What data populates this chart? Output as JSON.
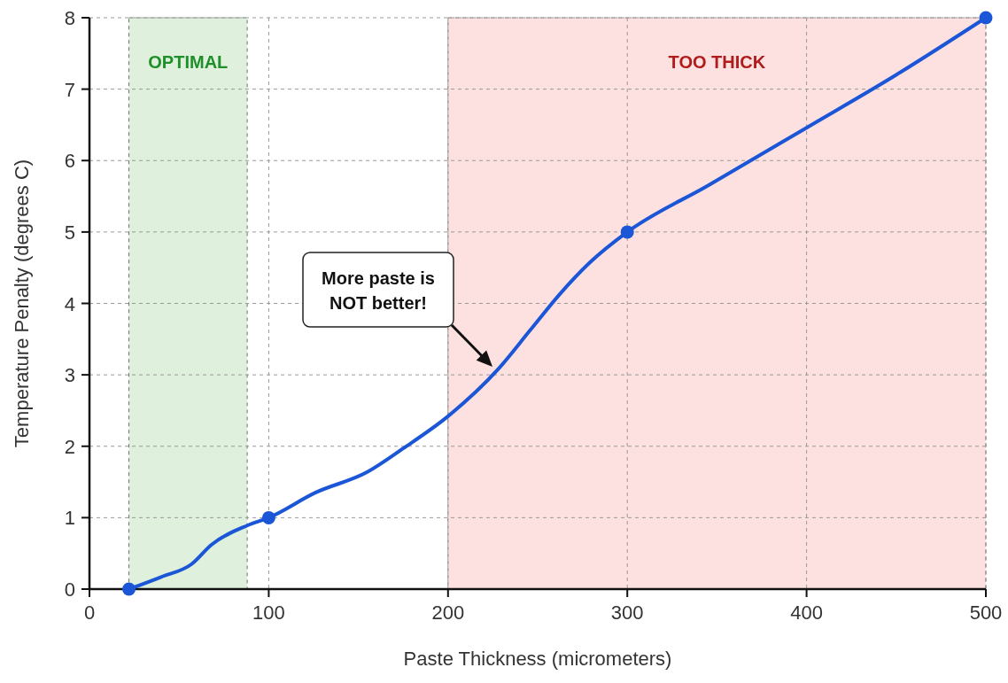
{
  "chart_data": {
    "type": "line",
    "xlabel": "Paste Thickness (micrometers)",
    "ylabel": "Temperature Penalty (degrees C)",
    "xlim": [
      0,
      500
    ],
    "xticks": [
      0,
      100,
      200,
      300,
      400,
      500
    ],
    "ylim": [
      0,
      8
    ],
    "yticks": [
      0,
      1,
      2,
      3,
      4,
      5,
      6,
      7,
      8
    ],
    "grid": true,
    "line_style": "solid",
    "series": [
      {
        "color": "#1a56d6",
        "marker": "none",
        "x": [
          22,
          40,
          57,
          68,
          88,
          100,
          126,
          155,
          175,
          200,
          228,
          246,
          262,
          279,
          300,
          345,
          400,
          450,
          500
        ],
        "values": [
          0,
          0.17,
          0.35,
          0.62,
          0.89,
          1,
          1.35,
          1.64,
          1.97,
          2.42,
          3.08,
          3.63,
          4.12,
          4.57,
          5,
          5.65,
          6.46,
          7.2,
          8
        ]
      },
      {
        "type": "scatter",
        "color": "#1a56d6",
        "marker": "circle",
        "x": [
          22,
          100,
          300,
          500
        ],
        "values": [
          0,
          1,
          5,
          8
        ]
      }
    ],
    "bands": [
      {
        "axis": "x",
        "from": 22,
        "to": 88,
        "label": "OPTIMAL",
        "color": "#dff0dc"
      },
      {
        "axis": "x",
        "from": 200,
        "to": 500,
        "label": "TOO THICK",
        "color": "#fde0e0"
      }
    ],
    "annotations": [
      "More paste is\nNOT better!"
    ]
  }
}
